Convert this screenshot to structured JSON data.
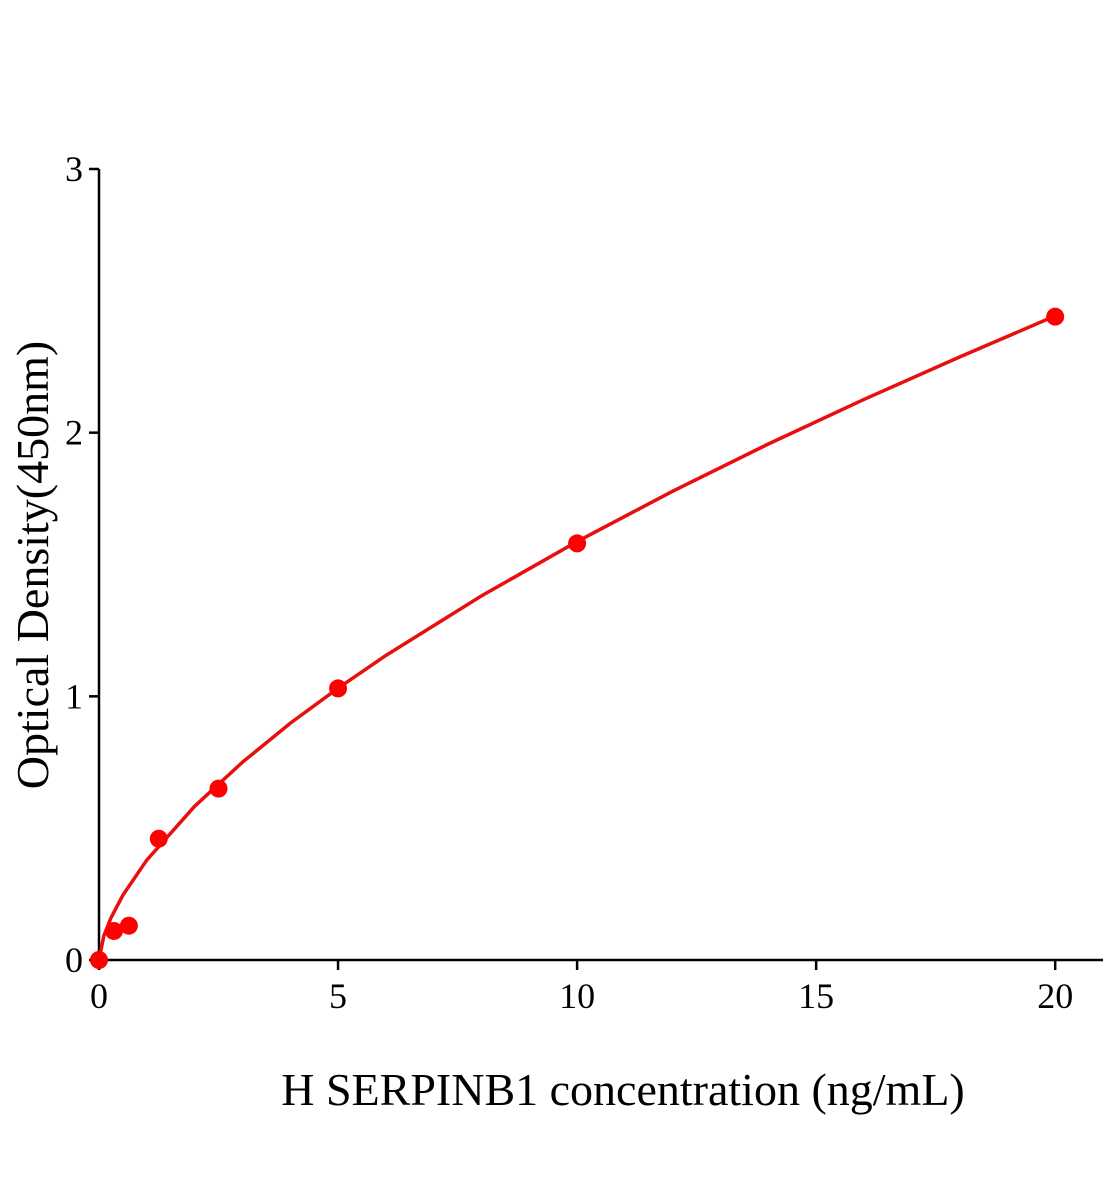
{
  "chart_data": {
    "type": "scatter",
    "x_label": "H SERPINB1 concentration (ng/mL)",
    "y_label": "Optical Density(450nm)",
    "xlim": [
      0,
      21
    ],
    "ylim": [
      0,
      3
    ],
    "xticks": [
      0,
      5,
      10,
      15,
      20
    ],
    "yticks": [
      0,
      1,
      2,
      3
    ],
    "series": [
      {
        "mode": "line",
        "color": "#e8100f",
        "x": [
          0,
          0.1,
          0.25,
          0.5,
          1,
          2,
          3,
          4,
          5,
          6,
          8,
          10,
          12,
          14,
          16,
          18,
          20
        ],
        "values": [
          0,
          0.091,
          0.16,
          0.246,
          0.379,
          0.583,
          0.75,
          0.898,
          1.031,
          1.155,
          1.381,
          1.587,
          1.778,
          1.957,
          2.126,
          2.287,
          2.443
        ]
      },
      {
        "mode": "markers",
        "color": "#ff0000",
        "x": [
          0,
          0.3125,
          0.625,
          1.25,
          2.5,
          5,
          10,
          20
        ],
        "values": [
          0,
          0.11,
          0.13,
          0.46,
          0.65,
          1.03,
          1.58,
          2.44
        ]
      }
    ]
  }
}
